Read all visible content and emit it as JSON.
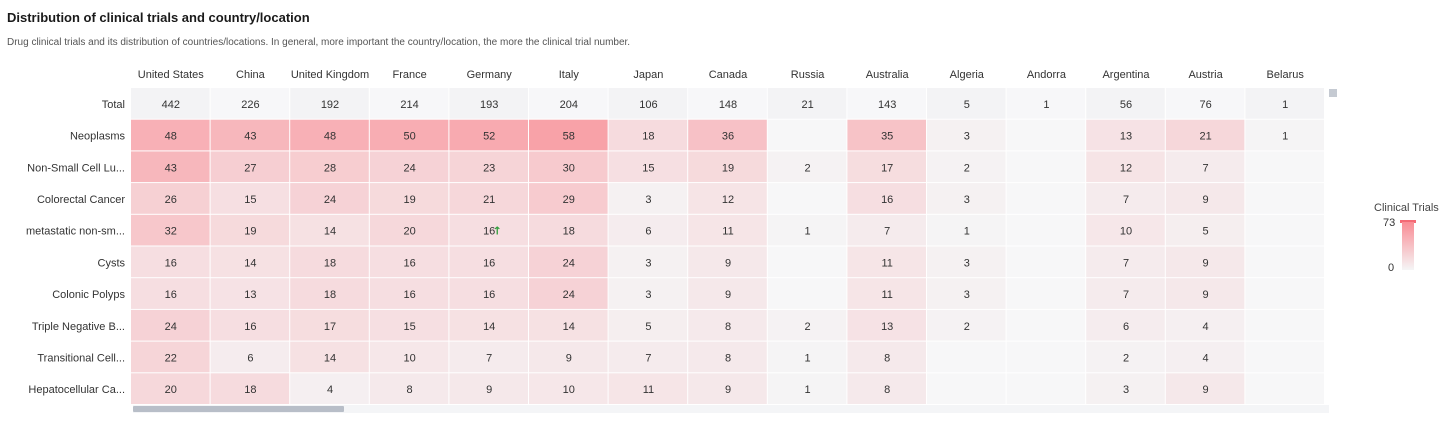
{
  "header": {
    "title": "Distribution of clinical trials and country/location",
    "subtitle": "Drug clinical trials and its distribution of countries/locations. In general, more important the country/location, the more the clinical trial number."
  },
  "legend": {
    "title": "Clinical Trials",
    "max": "73",
    "min": "0",
    "color_high": "#f98c94",
    "color_low": "#f5f5f6"
  },
  "chart_data": {
    "type": "heatmap",
    "x_categories": [
      "United States",
      "China",
      "United Kingdom",
      "France",
      "Germany",
      "Italy",
      "Japan",
      "Canada",
      "Russia",
      "Australia",
      "Algeria",
      "Andorra",
      "Argentina",
      "Austria",
      "Belarus"
    ],
    "y_categories": [
      "Total",
      "Neoplasms",
      "Non-Small Cell Lu...",
      "Colorectal Cancer",
      "metastatic non-sm...",
      "Cysts",
      "Colonic Polyps",
      "Triple Negative B...",
      "Transitional Cell...",
      "Hepatocellular Ca..."
    ],
    "values": [
      [
        442,
        226,
        192,
        214,
        193,
        204,
        106,
        148,
        21,
        143,
        5,
        1,
        56,
        76,
        1
      ],
      [
        48,
        43,
        48,
        50,
        52,
        58,
        18,
        36,
        null,
        35,
        3,
        null,
        13,
        21,
        1
      ],
      [
        43,
        27,
        28,
        24,
        23,
        30,
        15,
        19,
        2,
        17,
        2,
        null,
        12,
        7,
        null
      ],
      [
        26,
        15,
        24,
        19,
        21,
        29,
        3,
        12,
        null,
        16,
        3,
        null,
        7,
        9,
        null
      ],
      [
        32,
        19,
        14,
        20,
        16,
        18,
        6,
        11,
        1,
        7,
        1,
        null,
        10,
        5,
        null
      ],
      [
        16,
        14,
        18,
        16,
        16,
        24,
        3,
        9,
        null,
        11,
        3,
        null,
        7,
        9,
        null
      ],
      [
        16,
        13,
        18,
        16,
        16,
        24,
        3,
        9,
        null,
        11,
        3,
        null,
        7,
        9,
        null
      ],
      [
        24,
        16,
        17,
        15,
        14,
        14,
        5,
        8,
        2,
        13,
        2,
        null,
        6,
        4,
        null
      ],
      [
        22,
        6,
        14,
        10,
        7,
        9,
        7,
        8,
        1,
        8,
        null,
        null,
        2,
        4,
        null
      ],
      [
        20,
        18,
        4,
        8,
        9,
        10,
        11,
        9,
        1,
        8,
        null,
        null,
        3,
        9,
        null
      ]
    ],
    "color_range": [
      0,
      73
    ],
    "annotations": [
      {
        "row": 4,
        "col": 4,
        "marker": "↑",
        "color": "#2e9e3a"
      }
    ]
  }
}
